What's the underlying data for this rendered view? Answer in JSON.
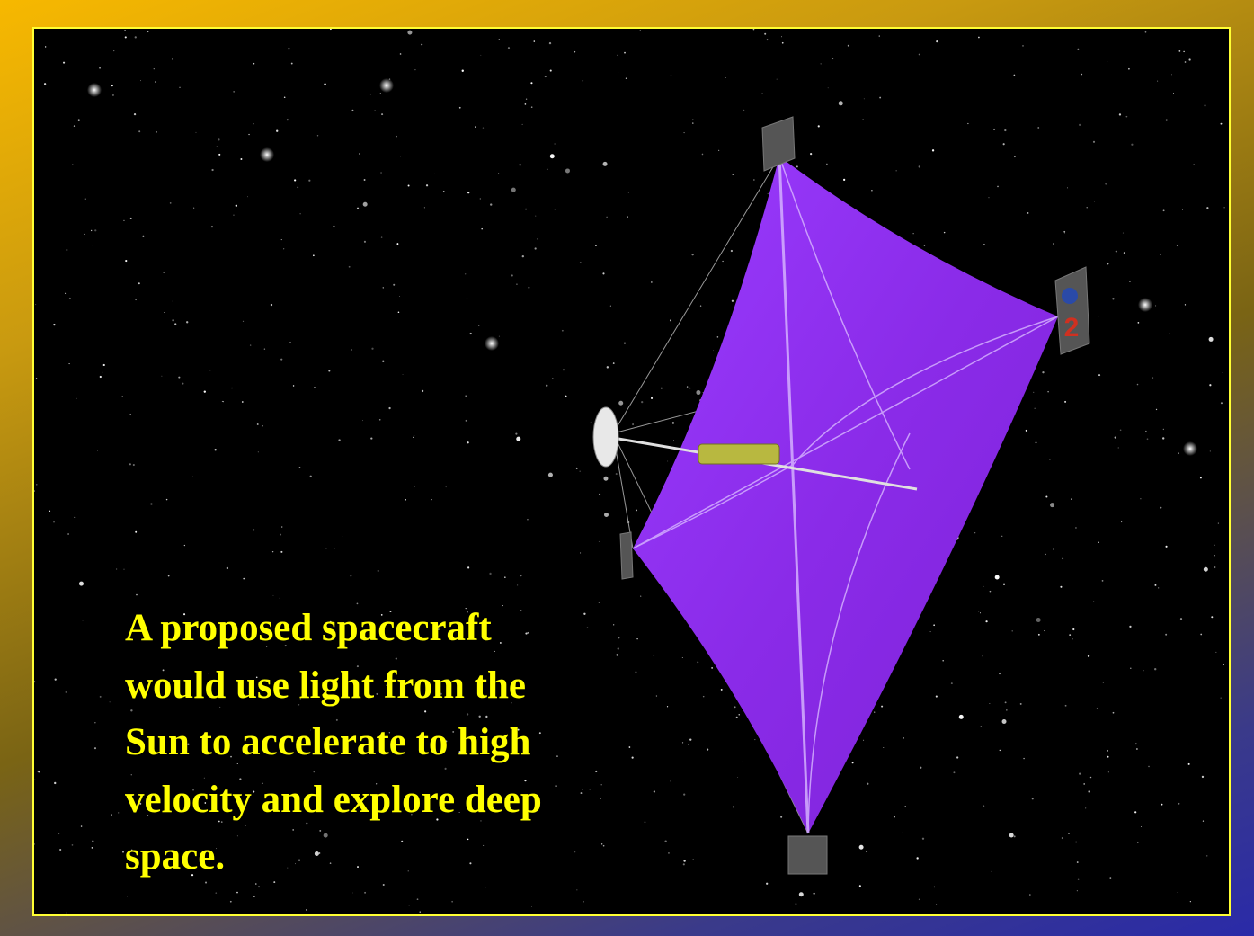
{
  "caption": {
    "lines": [
      "A proposed spacecraft",
      "would use light from the",
      "Sun to accelerate to high",
      "velocity and explore deep",
      "space."
    ]
  },
  "flag_label": "2"
}
